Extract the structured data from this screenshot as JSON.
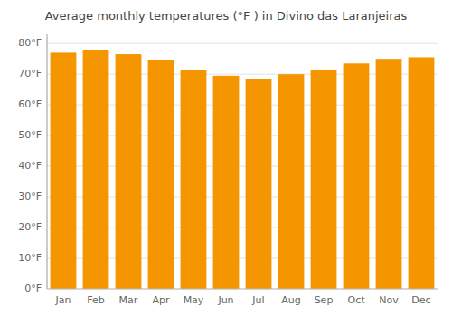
{
  "chart_data": {
    "type": "bar",
    "title": "Average monthly temperatures (°F ) in Divino das Laranjeiras",
    "categories": [
      "Jan",
      "Feb",
      "Mar",
      "Apr",
      "May",
      "Jun",
      "Jul",
      "Aug",
      "Sep",
      "Oct",
      "Nov",
      "Dec"
    ],
    "values": [
      77.0,
      78.0,
      76.5,
      74.5,
      71.5,
      69.5,
      68.5,
      70.0,
      71.5,
      73.5,
      75.0,
      75.5
    ],
    "color": "#F59500",
    "ylim": [
      0,
      83
    ],
    "yticks": [
      {
        "value": 0,
        "label": "0°F"
      },
      {
        "value": 10,
        "label": "10°F"
      },
      {
        "value": 20,
        "label": "20°F"
      },
      {
        "value": 30,
        "label": "30°F"
      },
      {
        "value": 40,
        "label": "40°F"
      },
      {
        "value": 50,
        "label": "50°F"
      },
      {
        "value": 60,
        "label": "60°F"
      },
      {
        "value": 70,
        "label": "70°F"
      },
      {
        "value": 80,
        "label": "80°F"
      }
    ],
    "grid": true
  }
}
